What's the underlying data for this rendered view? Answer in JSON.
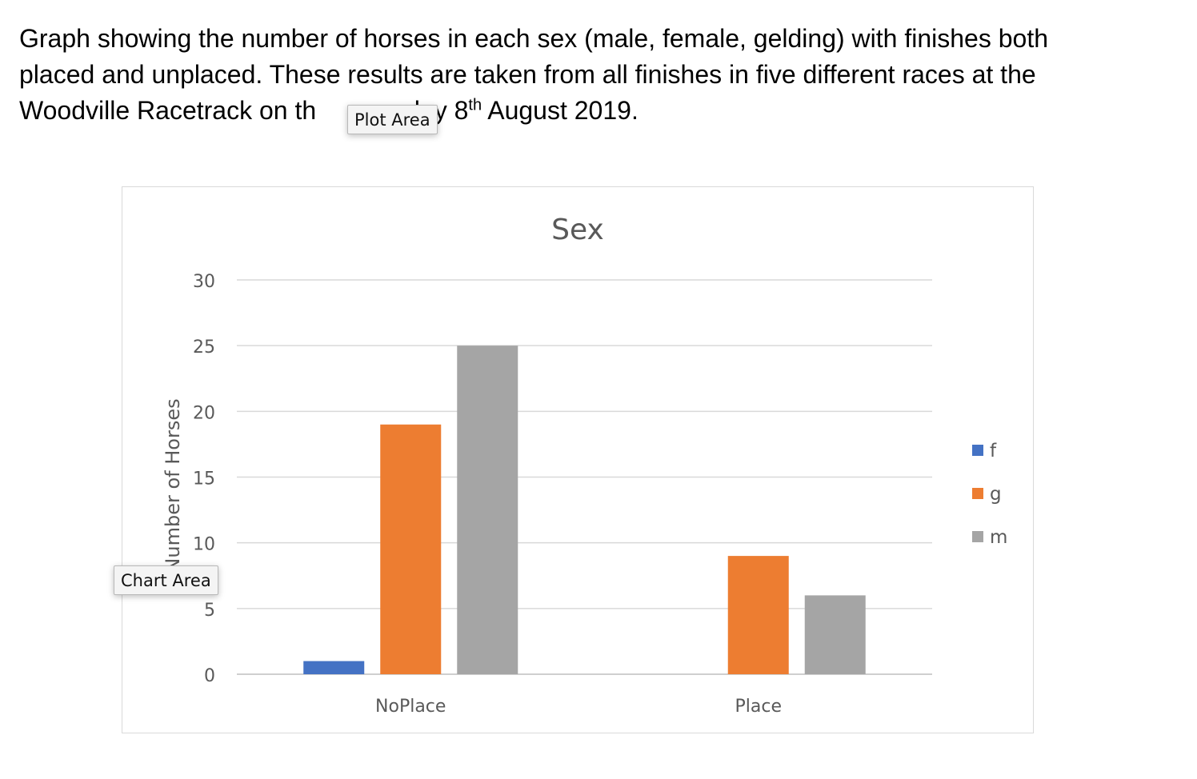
{
  "caption": {
    "line1": "Graph showing the number of horses in each sex (male, female, gelding) with finishes both",
    "line2": "placed and unplaced. These results are taken from all finishes in five different races at the",
    "line3_pre": "Woodville Racetrack on th",
    "line3_mid": "day 8",
    "line3_sup": "th",
    "line3_post": " August 2019."
  },
  "tooltips": {
    "plot_area": "Plot Area",
    "chart_area": "Chart Area"
  },
  "chart_data": {
    "type": "bar",
    "title": "Sex",
    "xlabel": "",
    "ylabel": "Number of Horses",
    "categories": [
      "NoPlace",
      "Place"
    ],
    "series": [
      {
        "name": "f",
        "values": [
          1,
          0
        ],
        "color": "#4472c4"
      },
      {
        "name": "g",
        "values": [
          19,
          9
        ],
        "color": "#ed7d31"
      },
      {
        "name": "m",
        "values": [
          25,
          6
        ],
        "color": "#a5a5a5"
      }
    ],
    "ylim": [
      0,
      30
    ],
    "yticks": [
      0,
      5,
      10,
      15,
      20,
      25,
      30
    ],
    "grid": true,
    "legend_position": "right"
  }
}
